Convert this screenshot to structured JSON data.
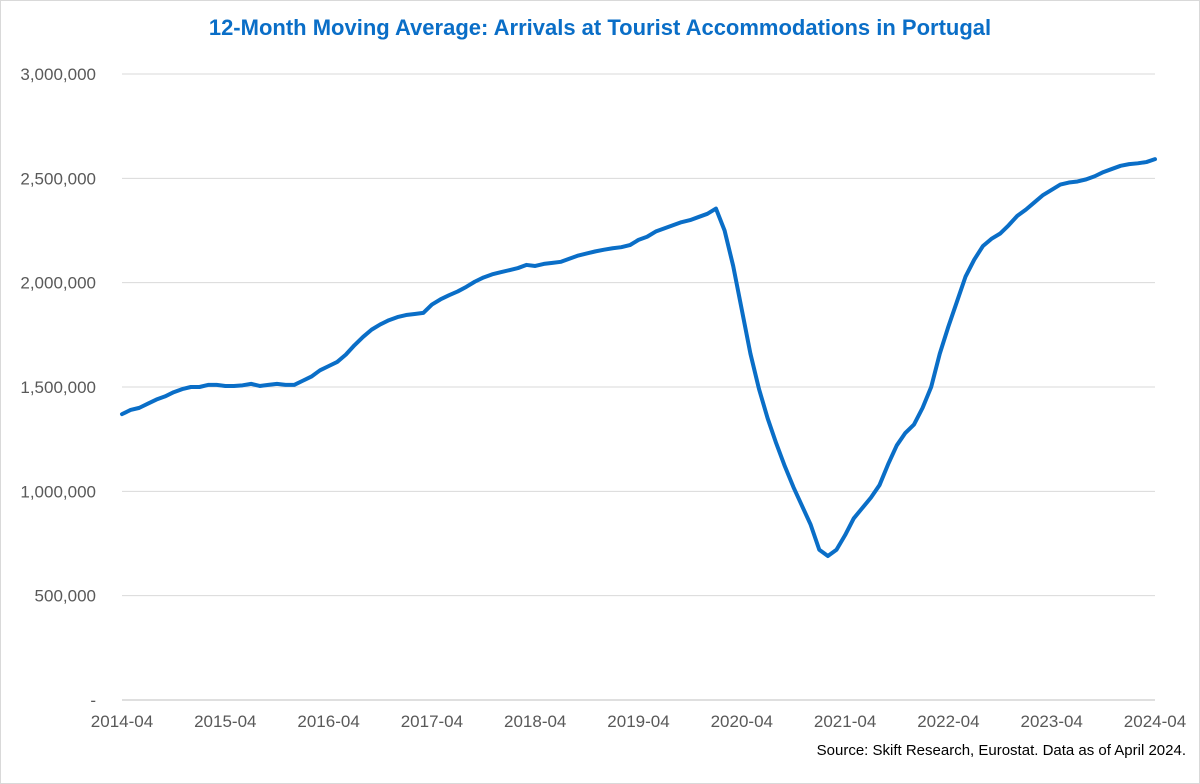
{
  "chart_data": {
    "type": "line",
    "title": "12-Month Moving Average: Arrivals at Tourist Accommodations in Portugal",
    "xlabel": "",
    "ylabel": "",
    "ylim": [
      0,
      3000000
    ],
    "grid": true,
    "y_ticks": [
      0,
      500000,
      1000000,
      1500000,
      2000000,
      2500000,
      3000000
    ],
    "y_tick_labels": [
      "-",
      "500,000",
      "1,000,000",
      "1,500,000",
      "2,000,000",
      "2,500,000",
      "3,000,000"
    ],
    "x_tick_labels": [
      "2014-04",
      "2015-04",
      "2016-04",
      "2017-04",
      "2018-04",
      "2019-04",
      "2020-04",
      "2021-04",
      "2022-04",
      "2023-04",
      "2024-04"
    ],
    "series": [
      {
        "name": "12-Month Moving Average",
        "color": "#0a6ec7",
        "x": [
          0,
          1,
          2,
          3,
          4,
          5,
          6,
          7,
          8,
          9,
          10,
          11,
          12,
          13,
          14,
          15,
          16,
          17,
          18,
          19,
          20,
          21,
          22,
          23,
          24,
          25,
          26,
          27,
          28,
          29,
          30,
          31,
          32,
          33,
          34,
          35,
          36,
          37,
          38,
          39,
          40,
          41,
          42,
          43,
          44,
          45,
          46,
          47,
          48,
          49,
          50,
          51,
          52,
          53,
          54,
          55,
          56,
          57,
          58,
          59,
          60,
          61,
          62,
          63,
          64,
          65,
          66,
          67,
          68,
          69,
          70,
          71,
          72,
          73,
          74,
          75,
          76,
          77,
          78,
          79,
          80,
          81,
          82,
          83,
          84,
          85,
          86,
          87,
          88,
          89,
          90,
          91,
          92,
          93,
          94,
          95,
          96,
          97,
          98,
          99,
          100,
          101,
          102,
          103,
          104,
          105,
          106,
          107,
          108,
          109,
          110,
          111,
          112,
          113,
          114,
          115,
          116,
          117,
          118,
          119,
          120
        ],
        "values": [
          1370000,
          1390000,
          1400000,
          1420000,
          1440000,
          1455000,
          1475000,
          1490000,
          1500000,
          1500000,
          1510000,
          1510000,
          1505000,
          1505000,
          1508000,
          1515000,
          1505000,
          1510000,
          1515000,
          1510000,
          1510000,
          1530000,
          1550000,
          1580000,
          1600000,
          1620000,
          1655000,
          1700000,
          1740000,
          1775000,
          1800000,
          1820000,
          1835000,
          1845000,
          1850000,
          1855000,
          1895000,
          1920000,
          1940000,
          1958000,
          1980000,
          2005000,
          2025000,
          2040000,
          2050000,
          2060000,
          2070000,
          2085000,
          2080000,
          2090000,
          2095000,
          2100000,
          2115000,
          2130000,
          2140000,
          2150000,
          2158000,
          2165000,
          2170000,
          2180000,
          2205000,
          2220000,
          2245000,
          2260000,
          2275000,
          2290000,
          2300000,
          2315000,
          2330000,
          2355000,
          2250000,
          2080000,
          1870000,
          1660000,
          1490000,
          1350000,
          1230000,
          1120000,
          1020000,
          930000,
          840000,
          720000,
          690000,
          720000,
          790000,
          870000,
          920000,
          970000,
          1030000,
          1130000,
          1220000,
          1280000,
          1320000,
          1400000,
          1500000,
          1660000,
          1790000,
          1910000,
          2030000,
          2110000,
          2175000,
          2210000,
          2235000,
          2275000,
          2320000,
          2350000,
          2385000,
          2420000,
          2445000,
          2470000,
          2480000,
          2485000,
          2495000,
          2510000,
          2530000,
          2545000,
          2560000,
          2568000,
          2572000,
          2578000,
          2592000
        ]
      }
    ]
  },
  "source": "Source: Skift Research, Eurostat. Data as of April 2024."
}
